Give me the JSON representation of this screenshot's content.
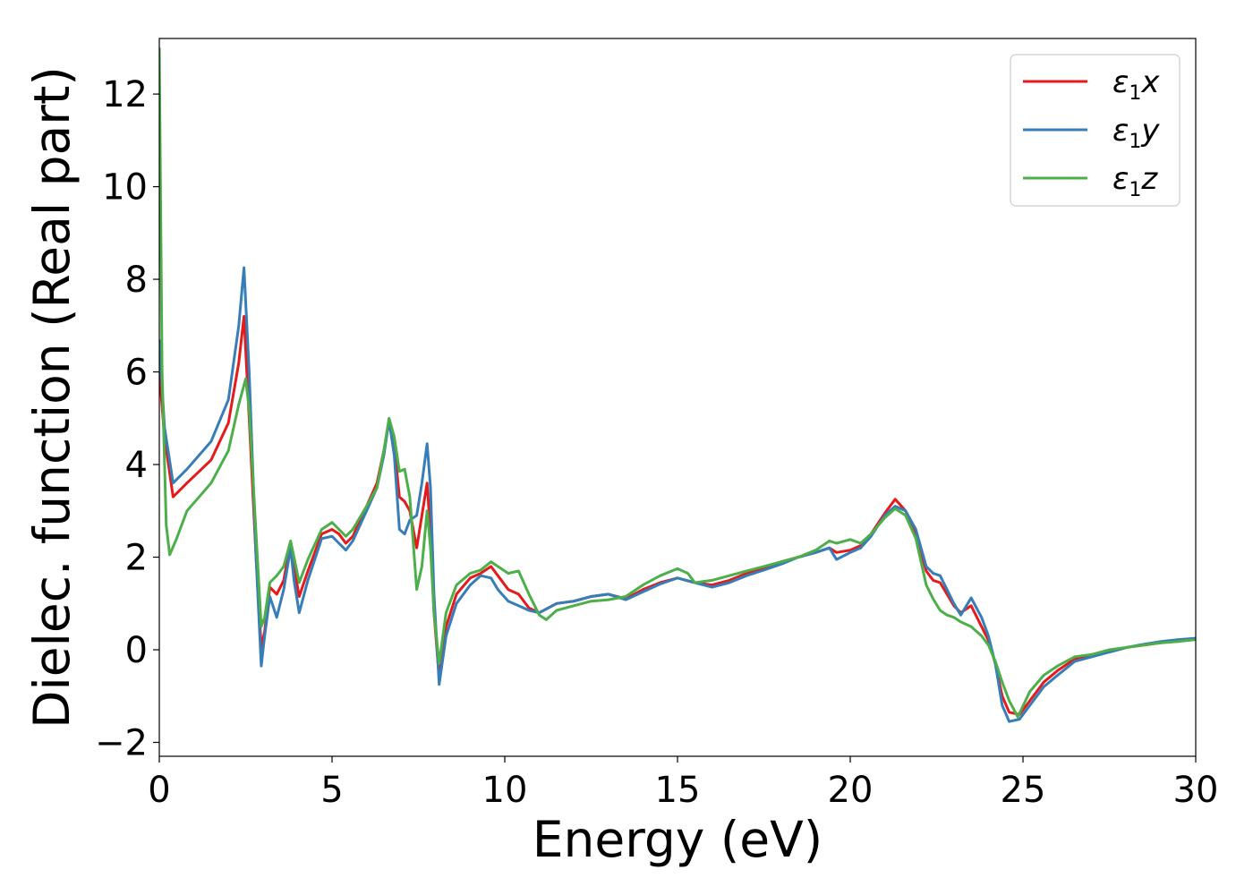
{
  "chart_data": {
    "type": "line",
    "xlabel": "Energy (eV)",
    "ylabel": "Dielec. function (Real part)",
    "xlim": [
      0,
      30
    ],
    "ylim": [
      -2.3,
      13.2
    ],
    "xticks": [
      0,
      5,
      10,
      15,
      20,
      25,
      30
    ],
    "xtick_labels": [
      "0",
      "5",
      "10",
      "15",
      "20",
      "25",
      "30"
    ],
    "yticks": [
      -2,
      0,
      2,
      4,
      6,
      8,
      10,
      12
    ],
    "ytick_labels": [
      "−2",
      "0",
      "2",
      "4",
      "6",
      "8",
      "10",
      "12"
    ],
    "grid": false,
    "legend_position": "top-right",
    "series": [
      {
        "name": "ε",
        "sub": "1",
        "suffix": "x",
        "color": "#e41a1c",
        "points": [
          [
            0,
            6.0
          ],
          [
            0.15,
            4.6
          ],
          [
            0.4,
            3.3
          ],
          [
            0.8,
            3.6
          ],
          [
            1.5,
            4.1
          ],
          [
            2.0,
            4.9
          ],
          [
            2.3,
            6.2
          ],
          [
            2.45,
            7.2
          ],
          [
            2.6,
            5.0
          ],
          [
            2.8,
            2.0
          ],
          [
            2.95,
            0.05
          ],
          [
            3.05,
            0.4
          ],
          [
            3.2,
            1.35
          ],
          [
            3.4,
            1.2
          ],
          [
            3.6,
            1.5
          ],
          [
            3.8,
            2.3
          ],
          [
            3.9,
            1.8
          ],
          [
            4.05,
            1.15
          ],
          [
            4.3,
            1.7
          ],
          [
            4.7,
            2.5
          ],
          [
            5.0,
            2.6
          ],
          [
            5.2,
            2.5
          ],
          [
            5.4,
            2.3
          ],
          [
            5.6,
            2.45
          ],
          [
            6.0,
            3.1
          ],
          [
            6.3,
            3.6
          ],
          [
            6.5,
            4.3
          ],
          [
            6.65,
            4.95
          ],
          [
            6.8,
            4.4
          ],
          [
            6.95,
            3.3
          ],
          [
            7.1,
            3.2
          ],
          [
            7.25,
            3.0
          ],
          [
            7.45,
            2.2
          ],
          [
            7.6,
            2.9
          ],
          [
            7.75,
            3.6
          ],
          [
            7.85,
            2.5
          ],
          [
            7.95,
            0.8
          ],
          [
            8.1,
            -0.6
          ],
          [
            8.3,
            0.5
          ],
          [
            8.6,
            1.2
          ],
          [
            9.0,
            1.55
          ],
          [
            9.3,
            1.65
          ],
          [
            9.6,
            1.8
          ],
          [
            9.8,
            1.6
          ],
          [
            10.1,
            1.3
          ],
          [
            10.4,
            1.2
          ],
          [
            10.7,
            0.9
          ],
          [
            11.0,
            0.8
          ],
          [
            11.5,
            1.0
          ],
          [
            12.0,
            1.05
          ],
          [
            12.5,
            1.15
          ],
          [
            13.0,
            1.2
          ],
          [
            13.5,
            1.1
          ],
          [
            14.0,
            1.3
          ],
          [
            14.5,
            1.45
          ],
          [
            15.0,
            1.55
          ],
          [
            15.5,
            1.45
          ],
          [
            16.0,
            1.4
          ],
          [
            16.5,
            1.5
          ],
          [
            17.0,
            1.65
          ],
          [
            17.5,
            1.75
          ],
          [
            18.0,
            1.9
          ],
          [
            18.5,
            2.0
          ],
          [
            19.0,
            2.1
          ],
          [
            19.4,
            2.2
          ],
          [
            19.6,
            2.1
          ],
          [
            20.0,
            2.15
          ],
          [
            20.3,
            2.25
          ],
          [
            20.6,
            2.5
          ],
          [
            21.0,
            2.95
          ],
          [
            21.3,
            3.25
          ],
          [
            21.6,
            3.0
          ],
          [
            21.9,
            2.5
          ],
          [
            22.2,
            1.7
          ],
          [
            22.4,
            1.5
          ],
          [
            22.6,
            1.45
          ],
          [
            22.8,
            1.2
          ],
          [
            23.0,
            0.95
          ],
          [
            23.2,
            0.8
          ],
          [
            23.5,
            0.95
          ],
          [
            23.8,
            0.5
          ],
          [
            24.0,
            0.2
          ],
          [
            24.2,
            -0.3
          ],
          [
            24.4,
            -1.0
          ],
          [
            24.6,
            -1.35
          ],
          [
            24.9,
            -1.4
          ],
          [
            25.2,
            -1.1
          ],
          [
            25.6,
            -0.7
          ],
          [
            26.0,
            -0.45
          ],
          [
            26.5,
            -0.2
          ],
          [
            27.0,
            -0.1
          ],
          [
            27.5,
            -0.05
          ],
          [
            28.0,
            0.05
          ],
          [
            28.5,
            0.1
          ],
          [
            29.0,
            0.15
          ],
          [
            29.5,
            0.2
          ],
          [
            30.0,
            0.23
          ]
        ]
      },
      {
        "name": "ε",
        "sub": "1",
        "suffix": "y",
        "color": "#377eb8",
        "points": [
          [
            0,
            6.7
          ],
          [
            0.15,
            4.8
          ],
          [
            0.4,
            3.6
          ],
          [
            0.8,
            3.9
          ],
          [
            1.5,
            4.5
          ],
          [
            2.0,
            5.4
          ],
          [
            2.3,
            7.0
          ],
          [
            2.45,
            8.25
          ],
          [
            2.6,
            6.0
          ],
          [
            2.8,
            2.0
          ],
          [
            2.95,
            -0.35
          ],
          [
            3.05,
            0.3
          ],
          [
            3.2,
            1.15
          ],
          [
            3.4,
            0.7
          ],
          [
            3.6,
            1.3
          ],
          [
            3.8,
            2.2
          ],
          [
            3.9,
            1.5
          ],
          [
            4.05,
            0.8
          ],
          [
            4.3,
            1.5
          ],
          [
            4.7,
            2.4
          ],
          [
            5.0,
            2.45
          ],
          [
            5.2,
            2.3
          ],
          [
            5.4,
            2.15
          ],
          [
            5.6,
            2.35
          ],
          [
            6.0,
            3.0
          ],
          [
            6.3,
            3.5
          ],
          [
            6.5,
            4.2
          ],
          [
            6.65,
            4.95
          ],
          [
            6.8,
            4.2
          ],
          [
            6.95,
            2.6
          ],
          [
            7.1,
            2.5
          ],
          [
            7.25,
            2.8
          ],
          [
            7.45,
            2.9
          ],
          [
            7.6,
            3.6
          ],
          [
            7.75,
            4.45
          ],
          [
            7.85,
            3.5
          ],
          [
            7.95,
            1.2
          ],
          [
            8.1,
            -0.75
          ],
          [
            8.3,
            0.3
          ],
          [
            8.6,
            1.0
          ],
          [
            9.0,
            1.4
          ],
          [
            9.3,
            1.6
          ],
          [
            9.6,
            1.55
          ],
          [
            9.8,
            1.3
          ],
          [
            10.1,
            1.05
          ],
          [
            10.4,
            0.95
          ],
          [
            10.7,
            0.85
          ],
          [
            11.0,
            0.8
          ],
          [
            11.5,
            1.0
          ],
          [
            12.0,
            1.05
          ],
          [
            12.5,
            1.15
          ],
          [
            13.0,
            1.2
          ],
          [
            13.5,
            1.08
          ],
          [
            14.0,
            1.25
          ],
          [
            14.5,
            1.42
          ],
          [
            15.0,
            1.55
          ],
          [
            15.5,
            1.45
          ],
          [
            16.0,
            1.35
          ],
          [
            16.5,
            1.45
          ],
          [
            17.0,
            1.6
          ],
          [
            17.5,
            1.72
          ],
          [
            18.0,
            1.85
          ],
          [
            18.5,
            2.0
          ],
          [
            19.0,
            2.1
          ],
          [
            19.4,
            2.2
          ],
          [
            19.6,
            1.95
          ],
          [
            20.0,
            2.1
          ],
          [
            20.3,
            2.2
          ],
          [
            20.6,
            2.45
          ],
          [
            21.0,
            2.9
          ],
          [
            21.3,
            3.1
          ],
          [
            21.6,
            3.0
          ],
          [
            21.9,
            2.6
          ],
          [
            22.2,
            1.8
          ],
          [
            22.4,
            1.65
          ],
          [
            22.6,
            1.6
          ],
          [
            22.8,
            1.3
          ],
          [
            23.0,
            1.0
          ],
          [
            23.2,
            0.75
          ],
          [
            23.5,
            1.12
          ],
          [
            23.8,
            0.7
          ],
          [
            24.0,
            0.3
          ],
          [
            24.2,
            -0.3
          ],
          [
            24.4,
            -1.2
          ],
          [
            24.6,
            -1.55
          ],
          [
            24.9,
            -1.5
          ],
          [
            25.2,
            -1.2
          ],
          [
            25.6,
            -0.8
          ],
          [
            26.0,
            -0.55
          ],
          [
            26.5,
            -0.25
          ],
          [
            27.0,
            -0.15
          ],
          [
            27.5,
            -0.05
          ],
          [
            28.0,
            0.05
          ],
          [
            28.5,
            0.12
          ],
          [
            29.0,
            0.18
          ],
          [
            29.5,
            0.22
          ],
          [
            30.0,
            0.25
          ]
        ]
      },
      {
        "name": "ε",
        "sub": "1",
        "suffix": "z",
        "color": "#4daf4a",
        "points": [
          [
            0,
            13.0
          ],
          [
            0.08,
            6.0
          ],
          [
            0.2,
            2.7
          ],
          [
            0.3,
            2.05
          ],
          [
            0.5,
            2.4
          ],
          [
            0.8,
            3.0
          ],
          [
            1.5,
            3.6
          ],
          [
            2.0,
            4.3
          ],
          [
            2.3,
            5.3
          ],
          [
            2.5,
            5.85
          ],
          [
            2.6,
            5.2
          ],
          [
            2.8,
            2.5
          ],
          [
            2.95,
            0.5
          ],
          [
            3.05,
            0.7
          ],
          [
            3.2,
            1.45
          ],
          [
            3.4,
            1.6
          ],
          [
            3.6,
            1.8
          ],
          [
            3.8,
            2.35
          ],
          [
            3.9,
            2.0
          ],
          [
            4.05,
            1.45
          ],
          [
            4.3,
            1.95
          ],
          [
            4.7,
            2.6
          ],
          [
            5.0,
            2.75
          ],
          [
            5.2,
            2.6
          ],
          [
            5.4,
            2.45
          ],
          [
            5.6,
            2.6
          ],
          [
            6.0,
            3.1
          ],
          [
            6.3,
            3.5
          ],
          [
            6.5,
            4.3
          ],
          [
            6.65,
            5.0
          ],
          [
            6.8,
            4.6
          ],
          [
            6.95,
            3.85
          ],
          [
            7.1,
            3.9
          ],
          [
            7.25,
            3.3
          ],
          [
            7.45,
            1.3
          ],
          [
            7.6,
            1.8
          ],
          [
            7.75,
            3.0
          ],
          [
            7.85,
            2.2
          ],
          [
            7.95,
            0.8
          ],
          [
            8.1,
            -0.3
          ],
          [
            8.3,
            0.8
          ],
          [
            8.6,
            1.4
          ],
          [
            9.0,
            1.65
          ],
          [
            9.3,
            1.72
          ],
          [
            9.6,
            1.9
          ],
          [
            9.8,
            1.8
          ],
          [
            10.1,
            1.65
          ],
          [
            10.4,
            1.7
          ],
          [
            10.7,
            1.2
          ],
          [
            11.0,
            0.75
          ],
          [
            11.2,
            0.65
          ],
          [
            11.5,
            0.85
          ],
          [
            12.0,
            0.95
          ],
          [
            12.5,
            1.05
          ],
          [
            13.0,
            1.08
          ],
          [
            13.5,
            1.15
          ],
          [
            14.0,
            1.4
          ],
          [
            14.5,
            1.6
          ],
          [
            15.0,
            1.75
          ],
          [
            15.3,
            1.65
          ],
          [
            15.5,
            1.45
          ],
          [
            16.0,
            1.5
          ],
          [
            16.5,
            1.6
          ],
          [
            17.0,
            1.7
          ],
          [
            17.5,
            1.8
          ],
          [
            18.0,
            1.9
          ],
          [
            18.5,
            2.0
          ],
          [
            19.0,
            2.15
          ],
          [
            19.4,
            2.35
          ],
          [
            19.6,
            2.3
          ],
          [
            20.0,
            2.38
          ],
          [
            20.3,
            2.3
          ],
          [
            20.6,
            2.5
          ],
          [
            21.0,
            2.85
          ],
          [
            21.3,
            3.05
          ],
          [
            21.6,
            2.9
          ],
          [
            21.9,
            2.4
          ],
          [
            22.2,
            1.4
          ],
          [
            22.4,
            1.1
          ],
          [
            22.6,
            0.85
          ],
          [
            22.8,
            0.75
          ],
          [
            23.0,
            0.7
          ],
          [
            23.2,
            0.6
          ],
          [
            23.5,
            0.5
          ],
          [
            23.8,
            0.3
          ],
          [
            24.0,
            0.1
          ],
          [
            24.2,
            -0.25
          ],
          [
            24.4,
            -0.7
          ],
          [
            24.6,
            -1.1
          ],
          [
            24.85,
            -1.45
          ],
          [
            25.2,
            -0.9
          ],
          [
            25.6,
            -0.55
          ],
          [
            26.0,
            -0.35
          ],
          [
            26.5,
            -0.15
          ],
          [
            27.0,
            -0.1
          ],
          [
            27.5,
            0.0
          ],
          [
            28.0,
            0.05
          ],
          [
            28.5,
            0.1
          ],
          [
            29.0,
            0.15
          ],
          [
            29.5,
            0.18
          ],
          [
            30.0,
            0.22
          ]
        ]
      }
    ]
  }
}
